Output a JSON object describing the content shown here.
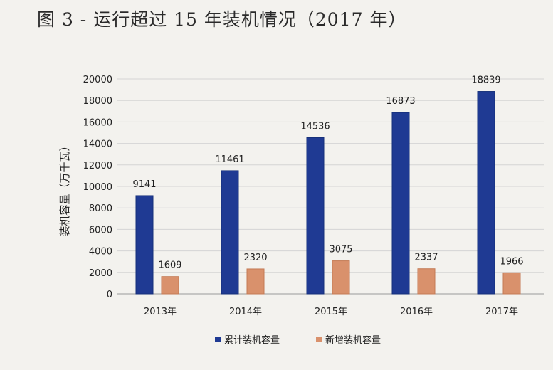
{
  "figure_title": "图 3 - 运行超过 15 年装机情况（2017 年）",
  "chart_data": {
    "type": "bar",
    "title": "",
    "xlabel": "",
    "ylabel": "装机容量（万千瓦）",
    "categories": [
      "2013年",
      "2014年",
      "2015年",
      "2016年",
      "2017年"
    ],
    "series": [
      {
        "name": "累计装机容量",
        "color": "#1f3a93",
        "values": [
          9141,
          11461,
          14536,
          16873,
          18839
        ]
      },
      {
        "name": "新增装机容量",
        "color": "#d9916c",
        "values": [
          1609,
          2320,
          3075,
          2337,
          1966
        ]
      }
    ],
    "ylim": [
      0,
      20000
    ],
    "yticks": [
      0,
      2000,
      4000,
      6000,
      8000,
      10000,
      12000,
      14000,
      16000,
      18000,
      20000
    ],
    "grid": true,
    "legend": "bottom",
    "data_labels": true
  }
}
